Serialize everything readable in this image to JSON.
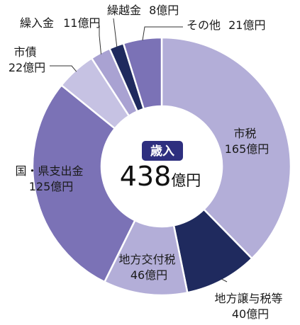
{
  "chart_data": {
    "type": "pie",
    "donut": true,
    "center": {
      "title": "歳入",
      "total_value": "438",
      "total_unit": "億円"
    },
    "categories": [
      "市税",
      "地方譲与税等",
      "地方交付税",
      "国・県支出金",
      "市債",
      "繰入金",
      "繰越金",
      "その他"
    ],
    "values": [
      165,
      40,
      46,
      125,
      22,
      11,
      8,
      21
    ],
    "unit": "億円",
    "labels": [
      {
        "name": "市税",
        "value_text": "165億円"
      },
      {
        "name": "地方譲与税等",
        "value_text": "40億円"
      },
      {
        "name": "地方交付税",
        "value_text": "46億円"
      },
      {
        "name": "国・県支出金",
        "value_text": "125億円"
      },
      {
        "name": "市債",
        "value_text": "22億円"
      },
      {
        "name": "繰入金",
        "value_text": "11億円"
      },
      {
        "name": "繰越金",
        "value_text": "8億円"
      },
      {
        "name": "その他",
        "value_text": "21億円"
      }
    ],
    "colors": [
      "#b3aed8",
      "#1f2a5e",
      "#b3aed8",
      "#7b72b6",
      "#c6c2e3",
      "#a9a2d2",
      "#1f2a5e",
      "#7b72b6"
    ],
    "center_badge_color": "#2e2f7f"
  }
}
